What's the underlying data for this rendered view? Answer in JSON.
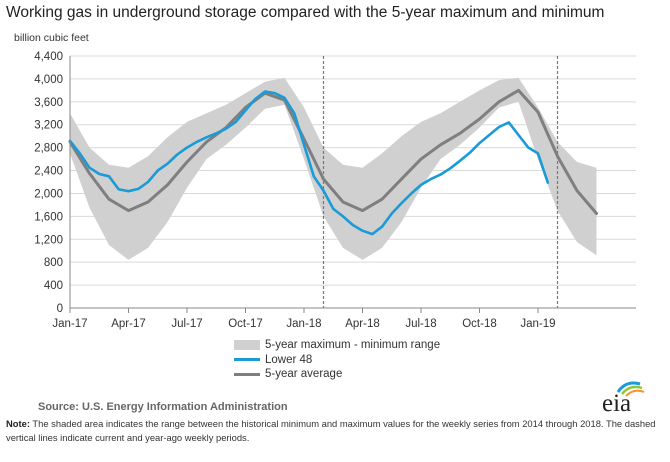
{
  "title": "Working gas in underground  storage compared with the 5-year maximum and minimum",
  "chart_data": {
    "type": "area",
    "ylabel": "billion cubic feet",
    "ylim": [
      0,
      4400
    ],
    "yticks": [
      "0",
      "400",
      "800",
      "1,200",
      "1,600",
      "2,000",
      "2,400",
      "2,800",
      "3,200",
      "3,600",
      "4,000",
      "4,400"
    ],
    "ytick_values": [
      0,
      400,
      800,
      1200,
      1600,
      2000,
      2400,
      2800,
      3200,
      3600,
      4000,
      4400
    ],
    "xticks": [
      "Jan-17",
      "Apr-17",
      "Jul-17",
      "Oct-17",
      "Jan-18",
      "Apr-18",
      "Jul-18",
      "Oct-18",
      "Jan-19"
    ],
    "xtick_months": [
      0,
      3,
      6,
      9,
      12,
      15,
      18,
      21,
      24
    ],
    "grid": true,
    "legend_position": "bottom",
    "dashed_vertical_lines_months": [
      13.0,
      25.0
    ],
    "series": [
      {
        "name": "5-year maximum - minimum range",
        "color": "#d0d0d0",
        "x_months": [
          0,
          1,
          2,
          3,
          4,
          5,
          6,
          7,
          8,
          9,
          10,
          11,
          12,
          13,
          14,
          15,
          16,
          17,
          18,
          19,
          20,
          21,
          22,
          23,
          24,
          25,
          26,
          27
        ],
        "max": [
          3400,
          2800,
          2500,
          2450,
          2650,
          2980,
          3250,
          3400,
          3550,
          3750,
          3950,
          4020,
          3500,
          2800,
          2500,
          2450,
          2700,
          3000,
          3250,
          3400,
          3600,
          3800,
          3980,
          4020,
          3500,
          2900,
          2550,
          2450
        ],
        "min": [
          2700,
          1750,
          1100,
          840,
          1050,
          1500,
          2100,
          2600,
          2850,
          3150,
          3480,
          3550,
          2600,
          1600,
          1050,
          840,
          1050,
          1500,
          2100,
          2600,
          2850,
          3150,
          3500,
          3600,
          2600,
          1700,
          1150,
          920
        ]
      },
      {
        "name": "Lower 48",
        "color": "#1a9bd7",
        "x_months": [
          0,
          0.5,
          1,
          1.5,
          2,
          2.5,
          3,
          3.5,
          4,
          4.5,
          5,
          5.5,
          6,
          6.5,
          7,
          7.5,
          8,
          8.5,
          9,
          9.5,
          10,
          10.5,
          11,
          11.5,
          12,
          12.5,
          13,
          13.5,
          14,
          14.5,
          15,
          15.5,
          16,
          16.5,
          17,
          17.5,
          18,
          18.5,
          19,
          19.5,
          20,
          20.5,
          21,
          21.5,
          22,
          22.5,
          23,
          23.5,
          24,
          24.5
        ],
        "values": [
          2920,
          2700,
          2450,
          2340,
          2300,
          2070,
          2040,
          2080,
          2200,
          2400,
          2520,
          2680,
          2800,
          2900,
          2980,
          3050,
          3130,
          3250,
          3450,
          3650,
          3780,
          3750,
          3670,
          3400,
          2850,
          2300,
          2050,
          1730,
          1600,
          1450,
          1350,
          1290,
          1420,
          1650,
          1830,
          2000,
          2150,
          2250,
          2330,
          2440,
          2570,
          2710,
          2880,
          3020,
          3160,
          3240,
          3020,
          2800,
          2700,
          2190
        ]
      },
      {
        "name": "5-year average",
        "color": "#7f7f7f",
        "x_months": [
          0,
          1,
          2,
          3,
          4,
          5,
          6,
          7,
          8,
          9,
          10,
          11,
          12,
          13,
          14,
          15,
          16,
          17,
          18,
          19,
          20,
          21,
          22,
          23,
          24,
          25,
          26,
          27
        ],
        "values": [
          2900,
          2350,
          1900,
          1700,
          1850,
          2150,
          2550,
          2900,
          3150,
          3500,
          3750,
          3630,
          2950,
          2250,
          1850,
          1700,
          1900,
          2250,
          2600,
          2850,
          3050,
          3300,
          3600,
          3800,
          3420,
          2650,
          2050,
          1650
        ]
      }
    ]
  },
  "legend": {
    "range_label": "5-year maximum - minimum range",
    "lower48_label": "Lower 48",
    "avg_label": "5-year average"
  },
  "source": "Source:  U.S. Energy Information Administration",
  "note_label": "Note:",
  "note_text": " The shaded area indicates the range between the historical minimum and maximum values for the weekly series from 2014 through 2018. The dashed vertical lines indicate current and year-ago weekly periods.",
  "logo_text": "eia",
  "colors": {
    "range": "#d0d0d0",
    "lower48": "#1a9bd7",
    "average": "#7f7f7f",
    "grid": "#d9d9d9"
  }
}
